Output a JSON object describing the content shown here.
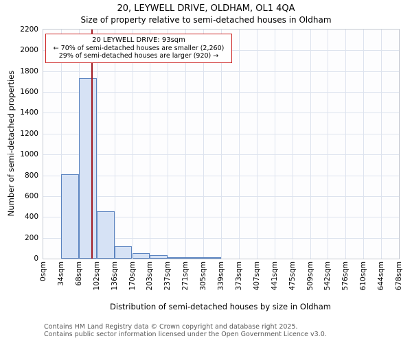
{
  "title": "20, LEYWELL DRIVE, OLDHAM, OL1 4QA",
  "subtitle": "Size of property relative to semi-detached houses in Oldham",
  "annotation": {
    "border_color": "#cc2222",
    "lines": [
      "20 LEYWELL DRIVE: 93sqm",
      "← 70% of semi-detached houses are smaller (2,260)",
      "29% of semi-detached houses are larger (920) →"
    ]
  },
  "chart_data": {
    "type": "bar",
    "title": "20, LEYWELL DRIVE, OLDHAM, OL1 4QA — Size of property relative to semi-detached houses in Oldham",
    "xlabel": "Distribution of semi-detached houses by size in Oldham",
    "ylabel": "Number of semi-detached properties",
    "xtick_labels": [
      "0sqm",
      "34sqm",
      "68sqm",
      "102sqm",
      "136sqm",
      "170sqm",
      "203sqm",
      "237sqm",
      "271sqm",
      "305sqm",
      "339sqm",
      "373sqm",
      "407sqm",
      "441sqm",
      "475sqm",
      "509sqm",
      "542sqm",
      "576sqm",
      "610sqm",
      "644sqm",
      "678sqm"
    ],
    "bin_edges_sqm": [
      0,
      34,
      68,
      102,
      136,
      170,
      203,
      237,
      271,
      305,
      339,
      373,
      407,
      441,
      475,
      509,
      542,
      576,
      610,
      644,
      678
    ],
    "values": [
      0,
      810,
      1730,
      455,
      120,
      55,
      30,
      12,
      10,
      5,
      0,
      0,
      0,
      0,
      0,
      0,
      0,
      0,
      0,
      0
    ],
    "ytick_labels": [
      "0",
      "200",
      "400",
      "600",
      "800",
      "1000",
      "1200",
      "1400",
      "1600",
      "1800",
      "2000",
      "2200"
    ],
    "ylim": [
      0,
      2200
    ],
    "ytick_step": 200,
    "xmax_sqm": 678,
    "marker_value_sqm": 93,
    "marker_color": "#a01820",
    "bar_fill": "#d6e2f5",
    "bar_border": "#5b84c0",
    "grid": true,
    "legend": "none"
  },
  "footer": {
    "line1": "Contains HM Land Registry data © Crown copyright and database right 2025.",
    "line2": "Contains public sector information licensed under the Open Government Licence v3.0."
  }
}
